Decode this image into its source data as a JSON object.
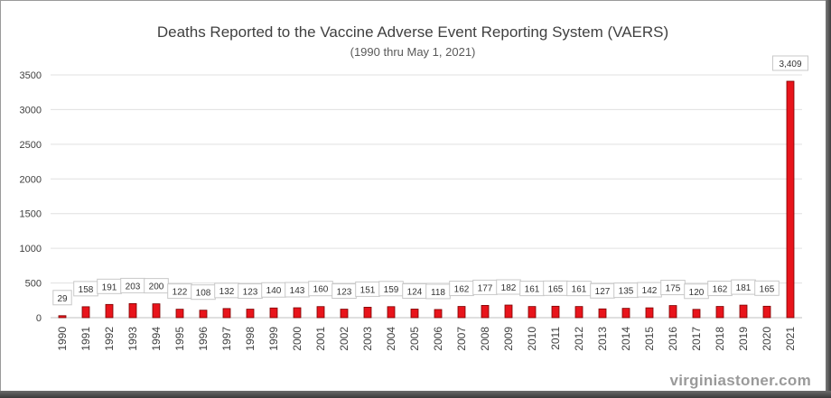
{
  "chart_data": {
    "type": "bar",
    "title": "Deaths Reported to the Vaccine Adverse Event Reporting System (VAERS)",
    "subtitle": "(1990 thru May 1, 2021)",
    "categories": [
      "1990",
      "1991",
      "1992",
      "1993",
      "1994",
      "1995",
      "1996",
      "1997",
      "1998",
      "1999",
      "2000",
      "2001",
      "2002",
      "2003",
      "2004",
      "2005",
      "2006",
      "2007",
      "2008",
      "2009",
      "2010",
      "2011",
      "2012",
      "2013",
      "2014",
      "2015",
      "2016",
      "2017",
      "2018",
      "2019",
      "2020",
      "2021"
    ],
    "values": [
      29,
      158,
      191,
      203,
      200,
      122,
      108,
      132,
      123,
      140,
      143,
      160,
      123,
      151,
      159,
      124,
      118,
      162,
      177,
      182,
      161,
      165,
      161,
      127,
      135,
      142,
      175,
      120,
      162,
      181,
      165,
      3409
    ],
    "value_labels": [
      "29",
      "158",
      "191",
      "203",
      "200",
      "122",
      "108",
      "132",
      "123",
      "140",
      "143",
      "160",
      "123",
      "151",
      "159",
      "124",
      "118",
      "162",
      "177",
      "182",
      "161",
      "165",
      "161",
      "127",
      "135",
      "142",
      "175",
      "120",
      "162",
      "181",
      "165",
      "3,409"
    ],
    "yticks": [
      0,
      500,
      1000,
      1500,
      2000,
      2500,
      3000,
      3500
    ],
    "ylim": [
      0,
      3500
    ],
    "grid": true,
    "legend": "none",
    "bar_color": "#e8141b",
    "bar_edge_color": "#7a0000"
  },
  "watermark": "virginiastoner.com"
}
